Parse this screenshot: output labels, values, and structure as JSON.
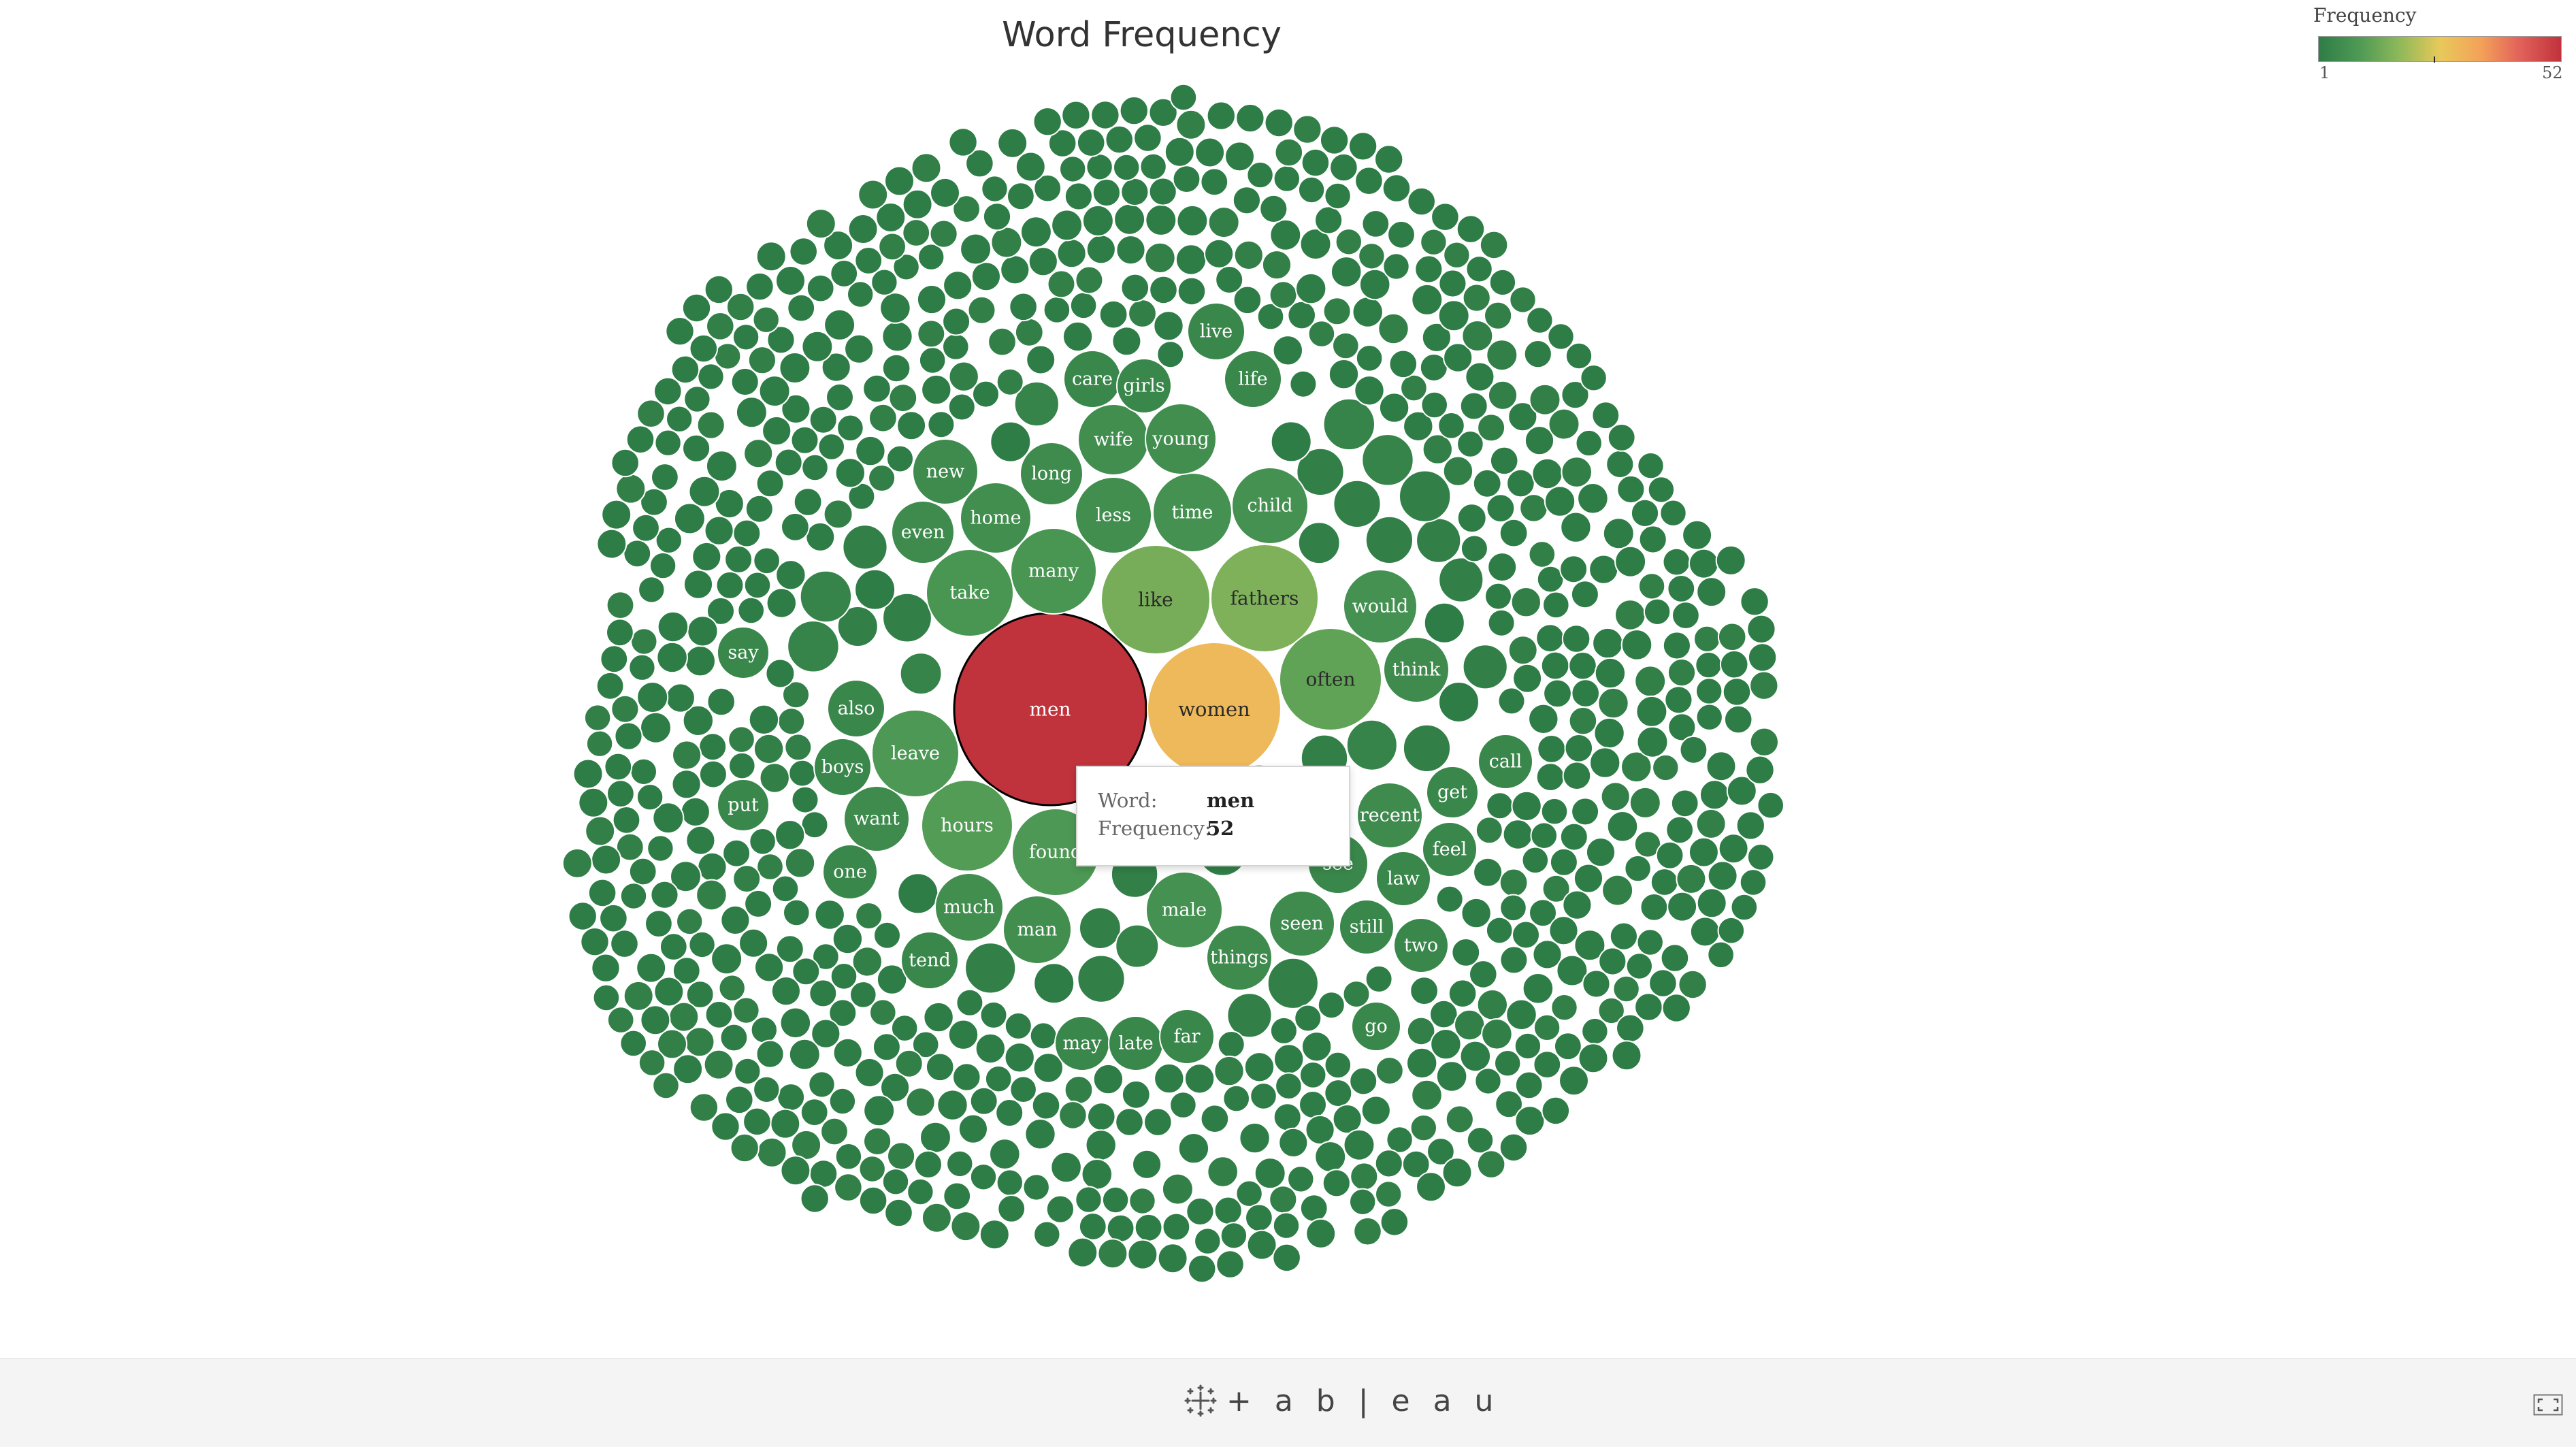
{
  "viz": {
    "title": "Word Frequency"
  },
  "legend": {
    "title": "Frequency",
    "min_label": "1",
    "max_label": "52",
    "colors": [
      "#2e7d46",
      "#4f9a55",
      "#8db85a",
      "#e8c95a",
      "#f4a15a",
      "#e2625a",
      "#c0323c"
    ]
  },
  "tooltip": {
    "word_key": "Word:",
    "word_value": "men",
    "frequency_key": "Frequency:",
    "frequency_value": "52"
  },
  "footer": {
    "brand": "+ a b | e a u",
    "brand_icon": "tableau-logo-icon",
    "fullscreen_icon": "fullscreen-icon"
  },
  "chart_data": {
    "type": "bubble",
    "measure": "Frequency",
    "color_range": [
      1,
      52
    ],
    "labeled_words": [
      {
        "word": "men",
        "frequency": 52
      },
      {
        "word": "women",
        "frequency": 30
      },
      {
        "word": "fathers",
        "frequency": 16
      },
      {
        "word": "like",
        "frequency": 15
      },
      {
        "word": "often",
        "frequency": 12
      },
      {
        "word": "hours",
        "frequency": 10
      },
      {
        "word": "leave",
        "frequency": 9
      },
      {
        "word": "found",
        "frequency": 9
      },
      {
        "word": "take",
        "frequency": 8
      },
      {
        "word": "many",
        "frequency": 8
      },
      {
        "word": "male",
        "frequency": 7
      },
      {
        "word": "would",
        "frequency": 7
      },
      {
        "word": "time",
        "frequency": 7
      },
      {
        "word": "child",
        "frequency": 7
      },
      {
        "word": "less",
        "frequency": 6
      },
      {
        "word": "home",
        "frequency": 6
      },
      {
        "word": "wife",
        "frequency": 6
      },
      {
        "word": "young",
        "frequency": 6
      },
      {
        "word": "man",
        "frequency": 6
      },
      {
        "word": "much",
        "frequency": 6
      },
      {
        "word": "think",
        "frequency": 5
      },
      {
        "word": "recent",
        "frequency": 5
      },
      {
        "word": "long",
        "frequency": 5
      },
      {
        "word": "new",
        "frequency": 5
      },
      {
        "word": "even",
        "frequency": 5
      },
      {
        "word": "things",
        "frequency": 5
      },
      {
        "word": "seen",
        "frequency": 5
      },
      {
        "word": "want",
        "frequency": 5
      },
      {
        "word": "live",
        "frequency": 4
      },
      {
        "word": "life",
        "frequency": 4
      },
      {
        "word": "care",
        "frequency": 4
      },
      {
        "word": "girls",
        "frequency": 4
      },
      {
        "word": "also",
        "frequency": 4
      },
      {
        "word": "boys",
        "frequency": 4
      },
      {
        "word": "say",
        "frequency": 4
      },
      {
        "word": "put",
        "frequency": 4
      },
      {
        "word": "one",
        "frequency": 4
      },
      {
        "word": "tend",
        "frequency": 4
      },
      {
        "word": "may",
        "frequency": 4
      },
      {
        "word": "late",
        "frequency": 4
      },
      {
        "word": "far",
        "frequency": 4
      },
      {
        "word": "go",
        "frequency": 4
      },
      {
        "word": "still",
        "frequency": 4
      },
      {
        "word": "two",
        "frequency": 4
      },
      {
        "word": "law",
        "frequency": 4
      },
      {
        "word": "feel",
        "frequency": 4
      },
      {
        "word": "get",
        "frequency": 4
      },
      {
        "word": "call",
        "frequency": 4
      },
      {
        "word": "see",
        "frequency": 4
      }
    ],
    "unlabeled_bubbles": "approximately 1000 low-frequency words (frequency 1-3)"
  }
}
